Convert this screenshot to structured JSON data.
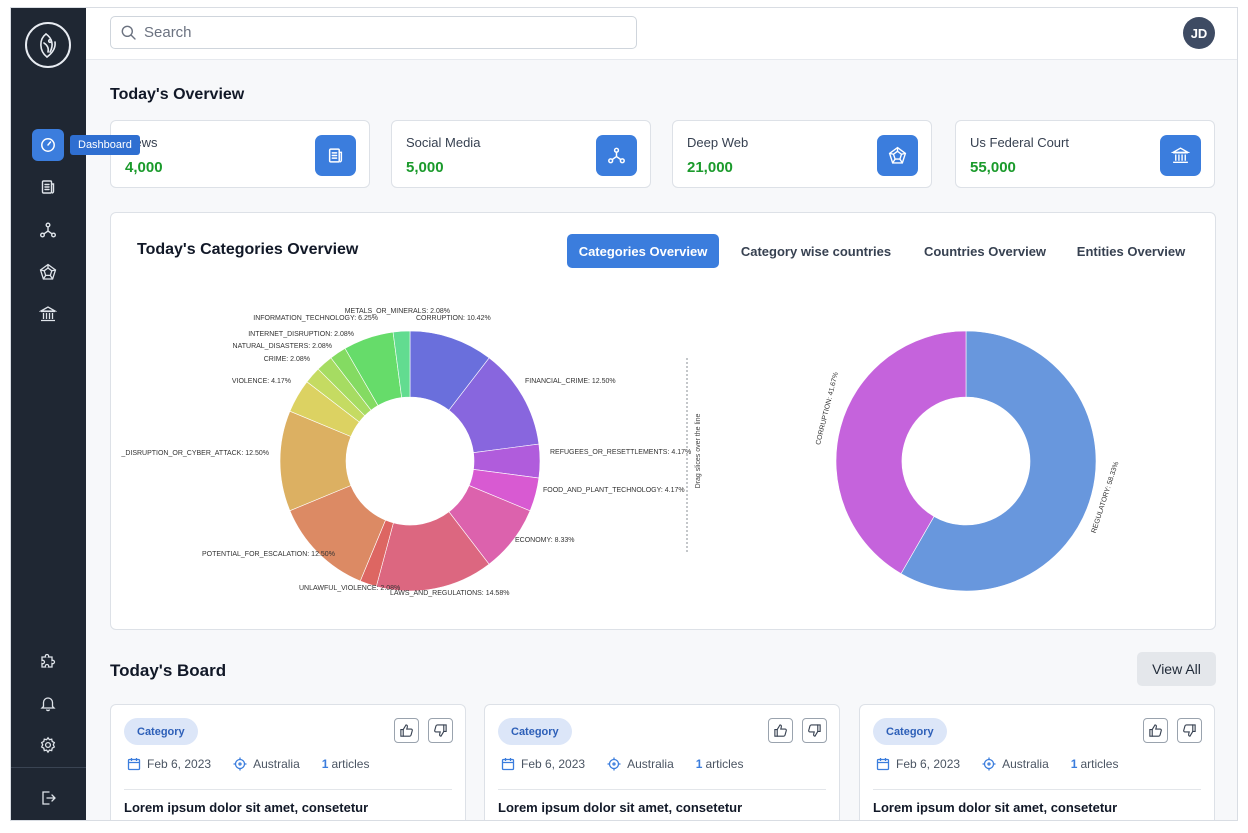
{
  "sidebar": {
    "tooltip": "Dashboard",
    "top_items": [
      {
        "icon": "dashboard-icon",
        "active": true
      },
      {
        "icon": "news-icon"
      },
      {
        "icon": "social-network-icon"
      },
      {
        "icon": "deep-web-icon"
      },
      {
        "icon": "court-icon"
      }
    ],
    "bottom_items": [
      {
        "icon": "puzzle-icon"
      },
      {
        "icon": "bell-icon"
      },
      {
        "icon": "gear-icon"
      },
      {
        "icon": "logout-icon"
      }
    ]
  },
  "header": {
    "search_placeholder": "Search",
    "avatar_initials": "JD"
  },
  "overview": {
    "title": "Today's Overview",
    "cards": [
      {
        "label": "News",
        "value": "4,000",
        "icon": "news-icon"
      },
      {
        "label": "Social Media",
        "value": "5,000",
        "icon": "social-network-icon"
      },
      {
        "label": "Deep Web",
        "value": "21,000",
        "icon": "deep-web-icon"
      },
      {
        "label": "Us Federal Court",
        "value": "55,000",
        "icon": "court-icon"
      }
    ]
  },
  "categories": {
    "title": "Today's Categories Overview",
    "tabs": [
      "Categories Overview",
      "Category wise countries",
      "Countries Overview",
      "Entities Overview"
    ],
    "active_tab": 0,
    "divider_text": "Drag slices over the line"
  },
  "chart_data": [
    {
      "type": "pie",
      "donut": true,
      "slices": [
        {
          "label": "CORRUPTION: 10.42%",
          "value": 10.42,
          "color": "#6a6fdc"
        },
        {
          "label": "FINANCIAL_CRIME: 12.50%",
          "value": 12.5,
          "color": "#8866de"
        },
        {
          "label": "REFUGEES_OR_RESETTLEMENTS: 4.17%",
          "value": 4.17,
          "color": "#b05cdc"
        },
        {
          "label": "FOOD_AND_PLANT_TECHNOLOGY: 4.17%",
          "value": 4.17,
          "color": "#d85ad2"
        },
        {
          "label": "ECONOMY: 8.33%",
          "value": 8.33,
          "color": "#dc62ad"
        },
        {
          "label": "LAWS_AND_REGULATIONS: 14.58%",
          "value": 14.58,
          "color": "#dc6780"
        },
        {
          "label": "UNLAWFUL_VIOLENCE: 2.08%",
          "value": 2.08,
          "color": "#dd6662"
        },
        {
          "label": "POTENTIAL_FOR_ESCALATION: 12.50%",
          "value": 12.5,
          "color": "#dc8a64"
        },
        {
          "label": "_DISRUPTION_OR_CYBER_ATTACK: 12.50%",
          "value": 12.5,
          "color": "#dcb062"
        },
        {
          "label": "VIOLENCE: 4.17%",
          "value": 4.17,
          "color": "#dcd262"
        },
        {
          "label": "CRIME: 2.08%",
          "value": 2.08,
          "color": "#c5db62"
        },
        {
          "label": "NATURAL_DISASTERS: 2.08%",
          "value": 2.08,
          "color": "#a6dc62"
        },
        {
          "label": "INTERNET_DISRUPTION: 2.08%",
          "value": 2.08,
          "color": "#84db62"
        },
        {
          "label": "INFORMATION_TECHNOLOGY: 6.25%",
          "value": 6.25,
          "color": "#66dc6a"
        },
        {
          "label": "METALS_OR_MINERALS: 2.08%",
          "value": 2.08,
          "color": "#62dc90"
        }
      ]
    },
    {
      "type": "pie",
      "donut": true,
      "slices": [
        {
          "label": "REGULATORY: 58.33%",
          "value": 58.33,
          "color": "#6897dd"
        },
        {
          "label": "CORRUPTION: 41.67%",
          "value": 41.67,
          "color": "#c563dc"
        }
      ]
    }
  ],
  "board": {
    "title": "Today's Board",
    "view_all": "View All",
    "cards": [
      {
        "category": "Category",
        "date": "Feb 6, 2023",
        "country": "Australia",
        "article_count": "1",
        "articles_label": "articles",
        "title": "Lorem ipsum dolor sit amet, consetetur"
      },
      {
        "category": "Category",
        "date": "Feb 6, 2023",
        "country": "Australia",
        "article_count": "1",
        "articles_label": "articles",
        "title": "Lorem ipsum dolor sit amet, consetetur"
      },
      {
        "category": "Category",
        "date": "Feb 6, 2023",
        "country": "Australia",
        "article_count": "1",
        "articles_label": "articles",
        "title": "Lorem ipsum dolor sit amet, consetetur"
      }
    ]
  }
}
